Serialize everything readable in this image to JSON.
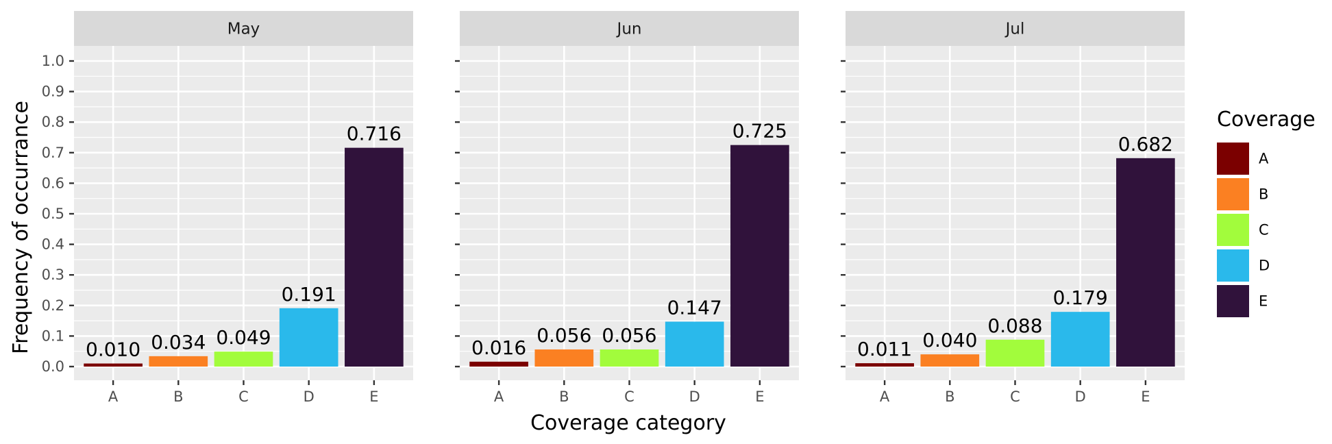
{
  "chart_data": {
    "type": "bar",
    "xlabel": "Coverage category",
    "ylabel": "Frequency of occurrance",
    "ylim": [
      0,
      1.0
    ],
    "yticks": [
      "0.0",
      "0.1",
      "0.2",
      "0.3",
      "0.4",
      "0.5",
      "0.6",
      "0.7",
      "0.8",
      "0.9",
      "1.0"
    ],
    "categories": [
      "A",
      "B",
      "C",
      "D",
      "E"
    ],
    "grid": true,
    "legend": {
      "title": "Coverage",
      "position": "right",
      "items": [
        "A",
        "B",
        "C",
        "D",
        "E"
      ]
    },
    "colors": {
      "A": "#7b0000",
      "B": "#fb8022",
      "C": "#a2fc3c",
      "D": "#2ab9eb",
      "E": "#30123b"
    },
    "facets": [
      {
        "name": "May",
        "values": [
          0.01,
          0.034,
          0.049,
          0.191,
          0.716
        ],
        "labels": [
          "0.010",
          "0.034",
          "0.049",
          "0.191",
          "0.716"
        ]
      },
      {
        "name": "Jun",
        "values": [
          0.016,
          0.056,
          0.056,
          0.147,
          0.725
        ],
        "labels": [
          "0.016",
          "0.056",
          "0.056",
          "0.147",
          "0.725"
        ]
      },
      {
        "name": "Jul",
        "values": [
          0.011,
          0.04,
          0.088,
          0.179,
          0.682
        ],
        "labels": [
          "0.011",
          "0.040",
          "0.088",
          "0.179",
          "0.682"
        ]
      }
    ]
  }
}
